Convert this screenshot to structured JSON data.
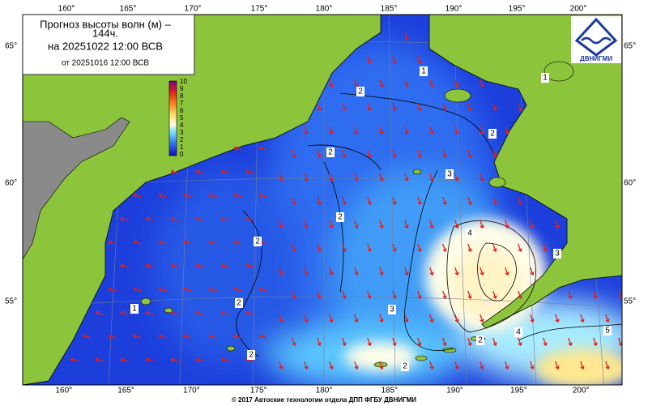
{
  "header": {
    "title_line1": "Прогноз высоты волн (м) –",
    "title_line2": "144ч.",
    "forecast_time": "на 20251022 12:00 ВСВ",
    "issued_time": "от 20251016 12:00 ВСВ"
  },
  "colorbar": {
    "labels": [
      10,
      9,
      8,
      7,
      6,
      5,
      4,
      3,
      2,
      1,
      0
    ]
  },
  "axes": {
    "lon_labels": [
      "160°",
      "165°",
      "170°",
      "175°",
      "180°",
      "185°",
      "190°",
      "195°",
      "200°"
    ],
    "lat_labels": [
      "65°",
      "60°",
      "55°"
    ]
  },
  "contour_labels": [
    1,
    1,
    2,
    2,
    2,
    3,
    2,
    4,
    3,
    2,
    2,
    1,
    3,
    2,
    5,
    4,
    2,
    2
  ],
  "logo": "ДВНИГМИ",
  "footer": "© 2017 Автоские технологии отдела ДПП ФГБУ ДВНИГМИ"
}
